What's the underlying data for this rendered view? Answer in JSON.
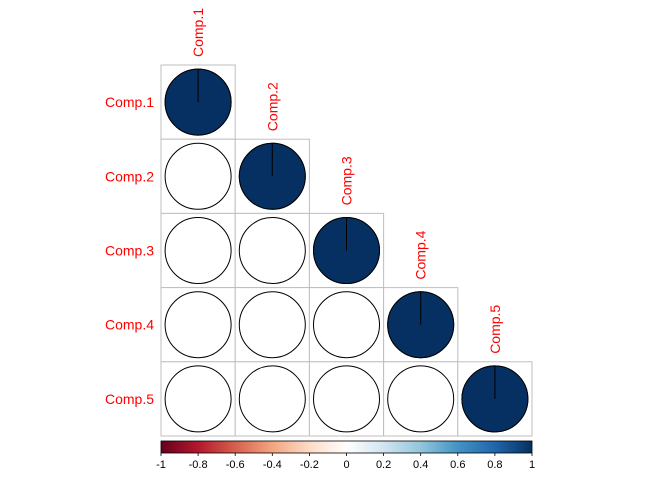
{
  "chart_data": {
    "type": "heatmap",
    "style": "corrplot-pie-lower",
    "variables": [
      "Comp.1",
      "Comp.2",
      "Comp.3",
      "Comp.4",
      "Comp.5"
    ],
    "matrix": [
      [
        1,
        0,
        0,
        0,
        0
      ],
      [
        0,
        1,
        0,
        0,
        0
      ],
      [
        0,
        0,
        1,
        0,
        0
      ],
      [
        0,
        0,
        0,
        1,
        0
      ],
      [
        0,
        0,
        0,
        0,
        1
      ]
    ],
    "colorbar": {
      "range": [
        -1,
        1
      ],
      "ticks": [
        "-1",
        "-0.8",
        "-0.6",
        "-0.4",
        "-0.2",
        "0",
        "0.2",
        "0.4",
        "0.6",
        "0.8",
        "1"
      ]
    },
    "colors": {
      "label": "#ff0000",
      "grid": "#bfbfbf",
      "scale": [
        "#67001f",
        "#b2182b",
        "#d6604d",
        "#f4a582",
        "#fddbc7",
        "#ffffff",
        "#d1e5f0",
        "#92c5de",
        "#4393c3",
        "#2166ac",
        "#053061"
      ]
    }
  }
}
